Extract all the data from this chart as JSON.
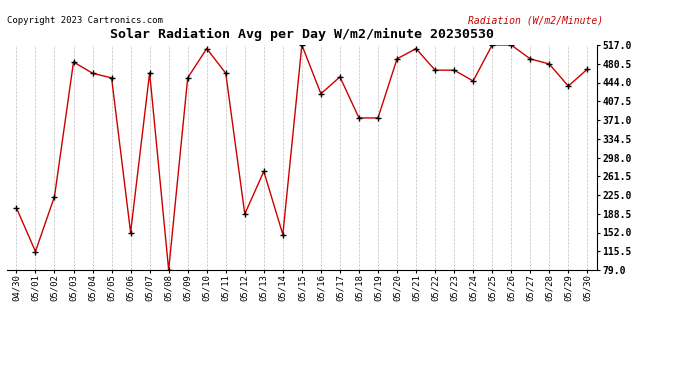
{
  "title": "Solar Radiation Avg per Day W/m2/minute 20230530",
  "copyright": "Copyright 2023 Cartronics.com",
  "legend_label": "Radiation (W/m2/Minute)",
  "dates": [
    "04/30",
    "05/01",
    "05/02",
    "05/03",
    "05/04",
    "05/05",
    "05/06",
    "05/07",
    "05/08",
    "05/09",
    "05/10",
    "05/11",
    "05/12",
    "05/13",
    "05/14",
    "05/15",
    "05/16",
    "05/17",
    "05/18",
    "05/19",
    "05/20",
    "05/21",
    "05/22",
    "05/23",
    "05/24",
    "05/25",
    "05/26",
    "05/27",
    "05/28",
    "05/29",
    "05/30"
  ],
  "values": [
    200,
    115,
    222,
    484,
    462,
    453,
    152,
    463,
    79,
    453,
    510,
    462,
    188,
    271,
    148,
    517,
    422,
    455,
    375,
    375,
    490,
    510,
    468,
    468,
    447,
    517,
    517,
    490,
    480,
    437,
    470
  ],
  "line_color": "#cc0000",
  "marker_color": "#000000",
  "bg_color": "#ffffff",
  "grid_color": "#c0c0c0",
  "title_color": "#000000",
  "copyright_color": "#000000",
  "legend_color": "#cc0000",
  "ymin": 79.0,
  "ymax": 517.0,
  "ytick_values": [
    79.0,
    115.5,
    152.0,
    188.5,
    225.0,
    261.5,
    298.0,
    334.5,
    371.0,
    407.5,
    444.0,
    480.5,
    517.0
  ],
  "ytick_labels": [
    "79.0",
    "115.5",
    "152.0",
    "188.5",
    "225.0",
    "261.5",
    "298.0",
    "334.5",
    "371.0",
    "407.5",
    "444.0",
    "480.5",
    "517.0"
  ]
}
